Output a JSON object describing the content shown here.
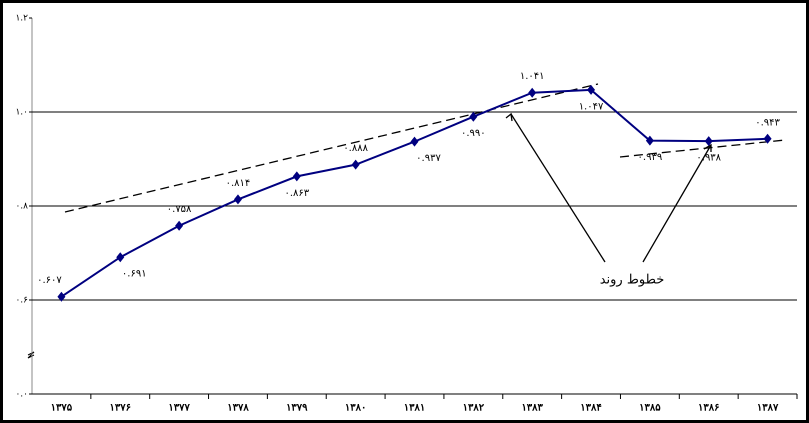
{
  "chart_data": {
    "type": "line",
    "categories": [
      "۱۳۷۵",
      "۱۳۷۶",
      "۱۳۷۷",
      "۱۳۷۸",
      "۱۳۷۹",
      "۱۳۸۰",
      "۱۳۸۱",
      "۱۳۸۲",
      "۱۳۸۳",
      "۱۳۸۴",
      "۱۳۸۵",
      "۱۳۸۶",
      "۱۳۸۷"
    ],
    "series": [
      {
        "color": "#000080",
        "values": [
          0.607,
          0.691,
          0.758,
          0.814,
          0.863,
          0.888,
          0.937,
          0.99,
          1.041,
          1.047,
          0.939,
          0.938,
          0.943
        ],
        "value_labels": [
          "۰.۶۰۷",
          "۰.۶۹۱",
          "۰.۷۵۸",
          "۰.۸۱۴",
          "۰.۸۶۳",
          "۰.۸۸۸",
          "۰.۹۳۷",
          "۰.۹۹۰",
          "۱.۰۴۱",
          "۱.۰۴۷",
          "۰.۹۳۹",
          "۰.۹۳۸",
          "۰.۹۴۳"
        ]
      }
    ],
    "ylim": [
      0,
      1.2
    ],
    "axis_break": [
      0,
      0.6
    ],
    "yticks": [
      {
        "value": 0,
        "label": "۰.۰"
      },
      {
        "value": 0.6,
        "label": "۰.۶"
      },
      {
        "value": 0.8,
        "label": "۰.۸"
      },
      {
        "value": 1.0,
        "label": "۱.۰"
      },
      {
        "value": 1.2,
        "label": "۱.۲"
      }
    ],
    "grid": true,
    "annotation": "خطوط روند"
  }
}
